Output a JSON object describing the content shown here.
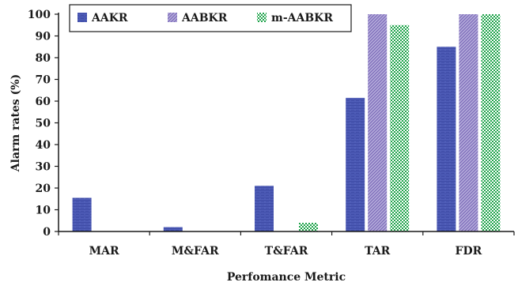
{
  "chart_data": {
    "type": "bar",
    "title": "",
    "xlabel": "Perfomance Metric",
    "ylabel": "Alarm rates (%)",
    "ylim": [
      0,
      100
    ],
    "yticks": [
      0,
      10,
      20,
      30,
      40,
      50,
      60,
      70,
      80,
      90,
      100
    ],
    "categories": [
      "MAR",
      "M&FAR",
      "T&FAR",
      "TAR",
      "FDR"
    ],
    "series": [
      {
        "name": "AAKR",
        "values": [
          15.5,
          2,
          21,
          61.5,
          85
        ],
        "color": "#3b48a3",
        "pattern": "brick"
      },
      {
        "name": "AABKR",
        "values": [
          0,
          0,
          0,
          100,
          100
        ],
        "color": "#8e7fc2",
        "pattern": "diagonal-hatch"
      },
      {
        "name": "m-AABKR",
        "values": [
          0,
          0,
          4,
          95,
          100
        ],
        "color": "#1ea34a",
        "pattern": "checker"
      }
    ],
    "legend": "top-left, inside plot",
    "grid": false
  }
}
